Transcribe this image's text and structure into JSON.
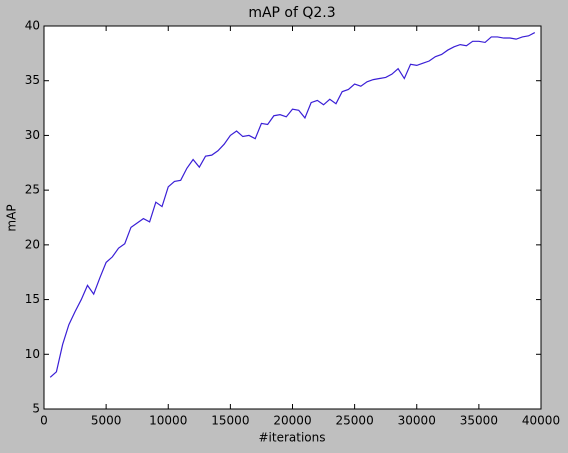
{
  "chart_data": {
    "type": "line",
    "title": "mAP of Q2.3",
    "x_label": "#iterations",
    "y_label": "mAP",
    "x": [
      500,
      1000,
      1500,
      2000,
      2500,
      3000,
      3500,
      4000,
      4500,
      5000,
      5500,
      6000,
      6500,
      7000,
      7500,
      8000,
      8500,
      9000,
      9500,
      10000,
      10500,
      11000,
      11500,
      12000,
      12500,
      13000,
      13500,
      14000,
      14500,
      15000,
      15500,
      16000,
      16500,
      17000,
      17500,
      18000,
      18500,
      19000,
      19500,
      20000,
      20500,
      21000,
      21500,
      22000,
      22500,
      23000,
      23500,
      24000,
      24500,
      25000,
      25500,
      26000,
      26500,
      27000,
      27500,
      28000,
      28500,
      29000,
      29500,
      30000,
      30500,
      31000,
      31500,
      32000,
      32500,
      33000,
      33500,
      34000,
      34500,
      35000,
      35500,
      36000,
      36500,
      37000,
      37500,
      38000,
      38500,
      39000,
      39500
    ],
    "series": [
      {
        "name": "mAP",
        "color": "#3a1fd6",
        "values": [
          7.9,
          8.4,
          10.9,
          12.7,
          13.9,
          15.0,
          16.3,
          15.5,
          17.0,
          18.4,
          18.9,
          19.7,
          20.1,
          21.6,
          22.0,
          22.4,
          22.1,
          23.9,
          23.5,
          25.3,
          25.8,
          25.9,
          27.0,
          27.8,
          27.1,
          28.1,
          28.2,
          28.6,
          29.2,
          30.0,
          30.4,
          29.9,
          30.0,
          29.7,
          31.1,
          31.0,
          31.8,
          31.9,
          31.7,
          32.4,
          32.3,
          31.6,
          33.0,
          33.2,
          32.8,
          33.3,
          32.9,
          34.0,
          34.2,
          34.7,
          34.5,
          34.9,
          35.1,
          35.2,
          35.3,
          35.6,
          36.1,
          35.2,
          36.5,
          36.4,
          36.6,
          36.8,
          37.2,
          37.4,
          37.8,
          38.1,
          38.3,
          38.2,
          38.6,
          38.6,
          38.5,
          39.0,
          39.0,
          38.9,
          38.9,
          38.8,
          39.0,
          39.1,
          39.4
        ]
      }
    ],
    "xlim": [
      0,
      40000
    ],
    "ylim": [
      5,
      40
    ],
    "xticks": [
      0,
      5000,
      10000,
      15000,
      20000,
      25000,
      30000,
      35000,
      40000
    ],
    "yticks": [
      5,
      10,
      15,
      20,
      25,
      30,
      35,
      40
    ],
    "grid": false
  }
}
